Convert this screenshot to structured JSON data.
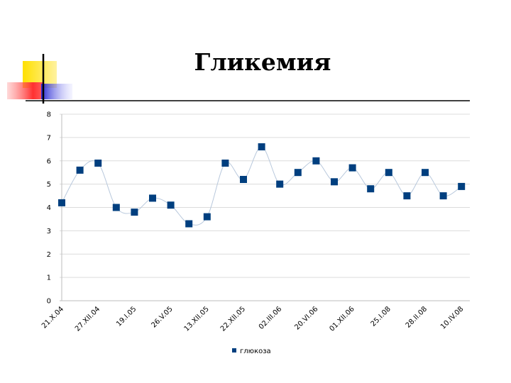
{
  "slide": {
    "title": "Гликемия",
    "accent_colors": {
      "yellow": "#ffe000",
      "red": "#ff4040",
      "blue": "#3a3ad8",
      "rule": "#000000"
    }
  },
  "chart_data": {
    "type": "line",
    "title": "",
    "xlabel": "",
    "ylabel": "",
    "ylim": [
      0,
      8
    ],
    "yticks": [
      0,
      1,
      2,
      3,
      4,
      5,
      6,
      7,
      8
    ],
    "grid": true,
    "smooth": true,
    "legend_position": "bottom",
    "x_tick_labels": [
      "21.X.04",
      "27.XII.04",
      "19.I.05",
      "26.V.05",
      "13.XII.05",
      "22.XII.05",
      "02.III.06",
      "20.VI.06",
      "01.XII.06",
      "25.I.08",
      "28.II.08",
      "10.IV.08"
    ],
    "series": [
      {
        "name": "глюкоза",
        "color": "#003f7f",
        "line_color": "#b8c8dc",
        "values": [
          4.2,
          5.6,
          5.9,
          4.0,
          3.8,
          4.4,
          4.1,
          3.3,
          3.6,
          5.9,
          5.2,
          6.6,
          5.0,
          5.5,
          6.0,
          5.1,
          5.7,
          4.8,
          5.5,
          4.5,
          5.5,
          4.5,
          4.9
        ]
      }
    ]
  }
}
